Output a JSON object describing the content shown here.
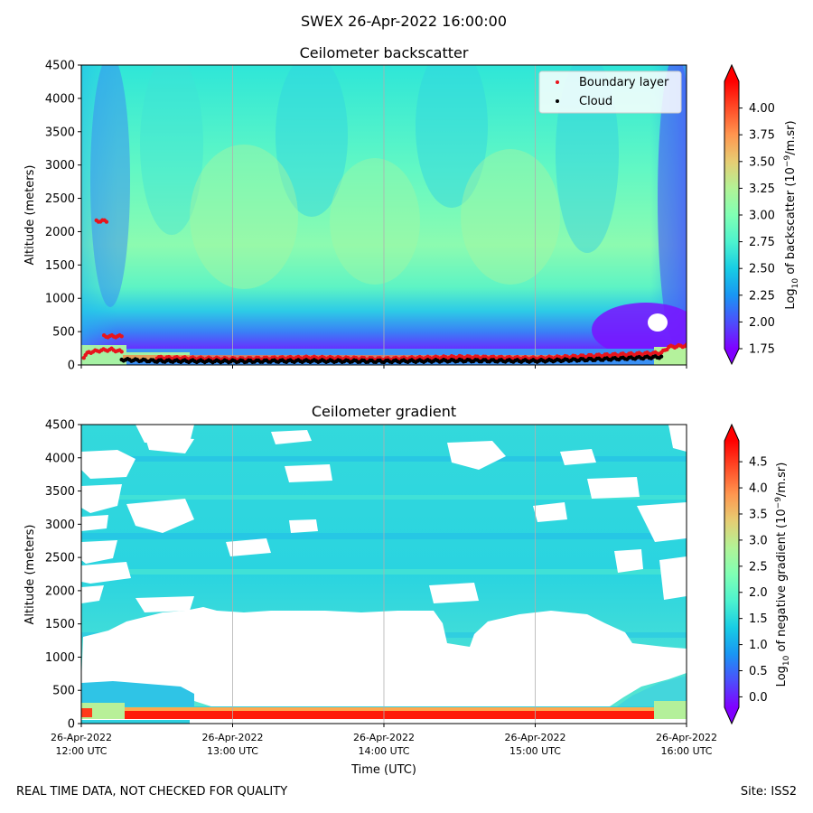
{
  "suptitle": "SWEX 26-Apr-2022 16:00:00",
  "footer": {
    "left": "REAL TIME DATA, NOT CHECKED FOR QUALITY",
    "right": "Site: ISS2"
  },
  "colors": {
    "colormap": [
      "#8000ff",
      "#4c4ffc",
      "#1996f3",
      "#18cde4",
      "#4df3ce",
      "#80ffb4",
      "#b2f396",
      "#e6cd73",
      "#ff964f",
      "#ff4c27",
      "#ff0000"
    ],
    "boundary_layer": "#e8141c",
    "cloud": "#000000",
    "gridline": "#b0b0b0"
  },
  "chart_data": [
    {
      "type": "heatmap",
      "title": "Ceilometer backscatter",
      "ylabel": "Altitude (meters)",
      "ylim": [
        0,
        4500
      ],
      "yticks": [
        0,
        500,
        1000,
        1500,
        2000,
        2500,
        3000,
        3500,
        4000,
        4500
      ],
      "xlim": [
        "2022-04-26T12:00",
        "2022-04-26T16:00"
      ],
      "xticks": [
        "2022-04-26T12:00",
        "2022-04-26T13:00",
        "2022-04-26T14:00",
        "2022-04-26T15:00",
        "2022-04-26T16:00"
      ],
      "grid": "vertical",
      "legend": {
        "placement": "top-right",
        "entries": [
          {
            "label": "Boundary layer",
            "color": "#e8141c"
          },
          {
            "label": "Cloud",
            "color": "#000000"
          }
        ]
      },
      "colorbar": {
        "label": "Log10 of backscatter (10−9/m.sr)",
        "range": [
          1.75,
          4.25
        ],
        "ticks": [
          "1.75",
          "2.00",
          "2.25",
          "2.50",
          "2.75",
          "3.00",
          "3.25",
          "3.50",
          "3.75",
          "4.00"
        ],
        "extend": "both"
      },
      "series": [
        {
          "name": "Boundary layer",
          "points": [
            {
              "time": "2022-04-26T12:01",
              "altitude": 120
            },
            {
              "time": "2022-04-26T12:03",
              "altitude": 190
            },
            {
              "time": "2022-04-26T12:08",
              "altitude": 220
            },
            {
              "time": "2022-04-26T12:12",
              "altitude": 230
            },
            {
              "time": "2022-04-26T12:16",
              "altitude": 200
            },
            {
              "time": "2022-04-26T12:06",
              "altitude": 2160
            },
            {
              "time": "2022-04-26T12:10",
              "altitude": 2160
            },
            {
              "time": "2022-04-26T12:09",
              "altitude": 430
            },
            {
              "time": "2022-04-26T12:16",
              "altitude": 430
            },
            {
              "time": "2022-04-26T12:30",
              "altitude": 110
            },
            {
              "time": "2022-04-26T13:00",
              "altitude": 90
            },
            {
              "time": "2022-04-26T13:30",
              "altitude": 110
            },
            {
              "time": "2022-04-26T14:00",
              "altitude": 90
            },
            {
              "time": "2022-04-26T14:30",
              "altitude": 120
            },
            {
              "time": "2022-04-26T15:00",
              "altitude": 100
            },
            {
              "time": "2022-04-26T15:30",
              "altitude": 150
            },
            {
              "time": "2022-04-26T15:50",
              "altitude": 180
            },
            {
              "time": "2022-04-26T15:53",
              "altitude": 270
            },
            {
              "time": "2022-04-26T16:00",
              "altitude": 290
            }
          ]
        },
        {
          "name": "Cloud",
          "points": [
            {
              "time": "2022-04-26T12:16",
              "altitude": 80
            },
            {
              "time": "2022-04-26T12:30",
              "altitude": 60
            },
            {
              "time": "2022-04-26T13:00",
              "altitude": 55
            },
            {
              "time": "2022-04-26T13:30",
              "altitude": 60
            },
            {
              "time": "2022-04-26T14:00",
              "altitude": 55
            },
            {
              "time": "2022-04-26T14:30",
              "altitude": 65
            },
            {
              "time": "2022-04-26T15:00",
              "altitude": 60
            },
            {
              "time": "2022-04-26T15:30",
              "altitude": 90
            },
            {
              "time": "2022-04-26T15:50",
              "altitude": 120
            }
          ]
        }
      ]
    },
    {
      "type": "heatmap",
      "title": "Ceilometer gradient",
      "xlabel": "Time (UTC)",
      "ylabel": "Altitude (meters)",
      "ylim": [
        0,
        4500
      ],
      "yticks": [
        0,
        500,
        1000,
        1500,
        2000,
        2500,
        3000,
        3500,
        4000,
        4500
      ],
      "xlim": [
        "2022-04-26T12:00",
        "2022-04-26T16:00"
      ],
      "xticks": [
        "2022-04-26T12:00",
        "2022-04-26T13:00",
        "2022-04-26T14:00",
        "2022-04-26T15:00",
        "2022-04-26T16:00"
      ],
      "xticklabels": [
        [
          "26-Apr-2022",
          "12:00 UTC"
        ],
        [
          "26-Apr-2022",
          "13:00 UTC"
        ],
        [
          "26-Apr-2022",
          "14:00 UTC"
        ],
        [
          "26-Apr-2022",
          "15:00 UTC"
        ],
        [
          "26-Apr-2022",
          "16:00 UTC"
        ]
      ],
      "grid": "vertical",
      "colorbar": {
        "label": "Log10 of negative gradient (10−9/m.sr)",
        "range": [
          -0.2,
          4.9
        ],
        "ticks": [
          "0.0",
          "0.5",
          "1.0",
          "1.5",
          "2.0",
          "2.5",
          "3.0",
          "3.5",
          "4.0",
          "4.5"
        ],
        "extend": "both"
      }
    }
  ]
}
